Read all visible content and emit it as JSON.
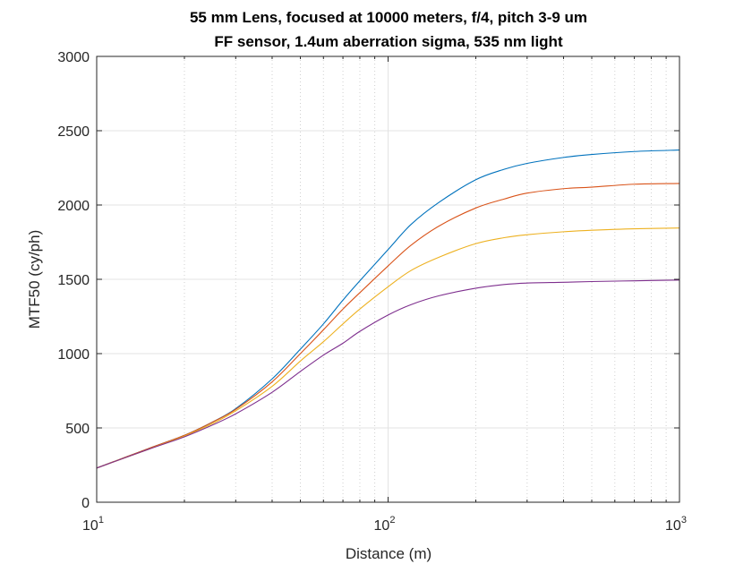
{
  "chart_data": {
    "type": "line",
    "title_lines": [
      "55 mm Lens, focused at 10000 meters, f/4, pitch 3-9 um",
      "FF sensor, 1.4um aberration sigma, 535 nm light"
    ],
    "xlabel": "Distance (m)",
    "ylabel": "MTF50 (cy/ph)",
    "x_scale": "log",
    "xlim": [
      10,
      1000
    ],
    "ylim": [
      0,
      3000
    ],
    "x_ticks": [
      {
        "value": 10,
        "base": "10",
        "exp": "1"
      },
      {
        "value": 100,
        "base": "10",
        "exp": "2"
      },
      {
        "value": 1000,
        "base": "10",
        "exp": "3"
      }
    ],
    "y_ticks": [
      "0",
      "500",
      "1000",
      "1500",
      "2000",
      "2500",
      "3000"
    ],
    "grid": true,
    "x": [
      10,
      15,
      20,
      25,
      30,
      40,
      50,
      60,
      70,
      80,
      100,
      120,
      150,
      200,
      250,
      300,
      400,
      500,
      700,
      1000
    ],
    "series": [
      {
        "color": "#0072BD",
        "values": [
          230,
          360,
          450,
          540,
          630,
          830,
          1030,
          1200,
          1360,
          1490,
          1700,
          1870,
          2020,
          2170,
          2240,
          2280,
          2320,
          2340,
          2360,
          2370
        ]
      },
      {
        "color": "#D95319",
        "values": [
          230,
          360,
          450,
          540,
          625,
          810,
          1000,
          1160,
          1300,
          1410,
          1590,
          1730,
          1860,
          1980,
          2040,
          2080,
          2110,
          2120,
          2140,
          2145
        ]
      },
      {
        "color": "#EDB120",
        "values": [
          230,
          355,
          445,
          530,
          615,
          780,
          950,
          1080,
          1200,
          1300,
          1450,
          1560,
          1650,
          1740,
          1780,
          1800,
          1820,
          1830,
          1840,
          1845
        ]
      },
      {
        "color": "#7E2F8E",
        "values": [
          230,
          355,
          440,
          520,
          595,
          740,
          880,
          990,
          1070,
          1150,
          1260,
          1330,
          1390,
          1440,
          1465,
          1475,
          1480,
          1485,
          1490,
          1495
        ]
      }
    ]
  }
}
